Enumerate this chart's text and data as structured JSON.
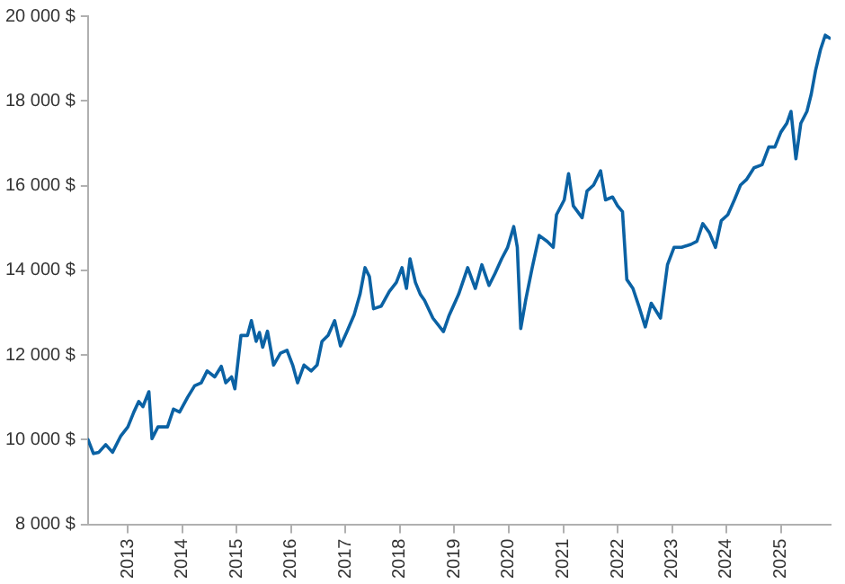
{
  "chart_data": {
    "type": "line",
    "xlim": [
      "2012-04-08",
      "2025-12-01"
    ],
    "xticks": [
      "2013",
      "2014",
      "2015",
      "2016",
      "2017",
      "2018",
      "2019",
      "2020",
      "2021",
      "2022",
      "2023",
      "2024",
      "2025"
    ],
    "ylim": [
      8000,
      20000
    ],
    "yticks": [
      {
        "value": 8000,
        "label": "8 000 $"
      },
      {
        "value": 10000,
        "label": "10 000 $"
      },
      {
        "value": 12000,
        "label": "12 000 $"
      },
      {
        "value": 14000,
        "label": "14 000 $"
      },
      {
        "value": 16000,
        "label": "16 000 $"
      },
      {
        "value": 18000,
        "label": "18 000 $"
      },
      {
        "value": 20000,
        "label": "20 000 $"
      }
    ],
    "grid": false,
    "legend": false,
    "series": [
      {
        "color": "#0b62a4",
        "x": [
          "2012-04-08",
          "2012-05-15",
          "2012-06-20",
          "2012-08-05",
          "2012-09-20",
          "2012-11-15",
          "2013-01-01",
          "2013-02-10",
          "2013-03-15",
          "2013-04-12",
          "2013-05-22",
          "2013-06-12",
          "2013-07-22",
          "2013-09-24",
          "2013-11-03",
          "2013-12-14",
          "2014-02-06",
          "2014-03-25",
          "2014-05-08",
          "2014-06-17",
          "2014-08-07",
          "2014-09-20",
          "2014-10-20",
          "2014-11-28",
          "2014-12-20",
          "2015-01-30",
          "2015-03-15",
          "2015-04-10",
          "2015-05-12",
          "2015-06-03",
          "2015-06-25",
          "2015-07-27",
          "2015-09-06",
          "2015-10-22",
          "2015-12-05",
          "2016-01-12",
          "2016-02-14",
          "2016-03-28",
          "2016-05-15",
          "2016-06-24",
          "2016-07-27",
          "2016-09-06",
          "2016-10-20",
          "2016-11-28",
          "2017-01-08",
          "2017-02-28",
          "2017-04-08",
          "2017-05-12",
          "2017-06-10",
          "2017-07-08",
          "2017-08-28",
          "2017-10-22",
          "2017-12-08",
          "2018-01-15",
          "2018-02-14",
          "2018-03-10",
          "2018-04-15",
          "2018-05-18",
          "2018-06-15",
          "2018-08-10",
          "2018-10-20",
          "2018-11-28",
          "2019-01-30",
          "2019-04-01",
          "2019-05-22",
          "2019-07-05",
          "2019-08-22",
          "2019-10-01",
          "2019-11-15",
          "2019-12-25",
          "2020-02-04",
          "2020-02-28",
          "2020-03-22",
          "2020-04-24",
          "2020-06-07",
          "2020-07-24",
          "2020-09-16",
          "2020-10-26",
          "2020-11-17",
          "2021-01-08",
          "2021-02-06",
          "2021-03-10",
          "2021-05-08",
          "2021-06-10",
          "2021-07-24",
          "2021-09-09",
          "2021-10-12",
          "2021-11-28",
          "2022-01-01",
          "2022-02-03",
          "2022-03-04",
          "2022-04-14",
          "2022-05-24",
          "2022-07-06",
          "2022-08-15",
          "2022-10-16",
          "2022-12-02",
          "2023-01-15",
          "2023-03-07",
          "2023-05-08",
          "2023-06-17",
          "2023-07-27",
          "2023-09-09",
          "2023-10-20",
          "2023-11-28",
          "2024-01-11",
          "2024-02-24",
          "2024-04-05",
          "2024-05-15",
          "2024-07-05",
          "2024-08-28",
          "2024-10-12",
          "2024-11-22",
          "2025-01-01",
          "2025-02-10",
          "2025-03-10",
          "2025-04-12",
          "2025-05-15",
          "2025-06-25",
          "2025-07-24",
          "2025-08-22",
          "2025-09-24",
          "2025-10-26",
          "2025-11-25"
        ],
        "values": [
          10000,
          9670,
          9700,
          9880,
          9700,
          10090,
          10300,
          10650,
          10900,
          10780,
          11130,
          10020,
          10300,
          10300,
          10720,
          10650,
          11000,
          11270,
          11340,
          11620,
          11480,
          11730,
          11340,
          11480,
          11200,
          12460,
          12460,
          12810,
          12320,
          12530,
          12180,
          12560,
          11760,
          12040,
          12110,
          11760,
          11340,
          11760,
          11620,
          11760,
          12320,
          12460,
          12810,
          12210,
          12530,
          12950,
          13430,
          14060,
          13850,
          13090,
          13150,
          13500,
          13710,
          14060,
          13570,
          14270,
          13710,
          13430,
          13290,
          12870,
          12550,
          12940,
          13430,
          14060,
          13570,
          14130,
          13640,
          13920,
          14270,
          14540,
          15030,
          14540,
          12620,
          13290,
          14060,
          14820,
          14680,
          14540,
          15310,
          15660,
          16280,
          15520,
          15240,
          15870,
          16010,
          16350,
          15660,
          15730,
          15520,
          15380,
          13780,
          13570,
          13150,
          12660,
          13220,
          12870,
          14130,
          14540,
          14540,
          14610,
          14680,
          15100,
          14890,
          14540,
          15170,
          15310,
          15660,
          16010,
          16140,
          16420,
          16490,
          16910,
          16910,
          17260,
          17470,
          17750,
          16630,
          17470,
          17750,
          18160,
          18720,
          19210,
          19550,
          19480
        ]
      }
    ]
  }
}
